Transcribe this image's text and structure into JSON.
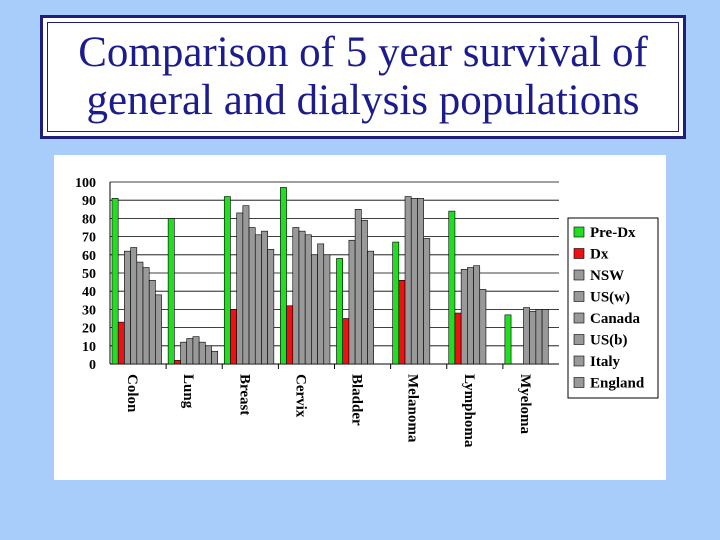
{
  "chart_data": {
    "type": "bar",
    "title": "Comparison of 5 year survival of general and dialysis populations",
    "xlabel": "",
    "ylabel": "",
    "ylim": [
      0,
      100
    ],
    "yticks": [
      "100",
      "90",
      "80",
      "70",
      "60",
      "50",
      "40",
      "30",
      "20",
      "10",
      "0"
    ],
    "grid": true,
    "legend_position": "right",
    "categories": [
      "Colon",
      "Lung",
      "Breast",
      "Cervix",
      "Bladder",
      "Melanoma",
      "Lymphoma",
      "Myeloma"
    ],
    "series": [
      {
        "name": "Pre-Dx",
        "color": "#22dd22",
        "values": [
          91,
          80,
          92,
          97,
          58,
          67,
          84,
          27
        ]
      },
      {
        "name": "Dx",
        "color": "#ee1111",
        "values": [
          23,
          2,
          30,
          32,
          25,
          46,
          28,
          0
        ]
      },
      {
        "name": "NSW",
        "color": "#999999",
        "values": [
          62,
          12,
          83,
          75,
          68,
          92,
          52,
          0
        ]
      },
      {
        "name": "US(w)",
        "color": "#999999",
        "values": [
          64,
          14,
          87,
          73,
          85,
          91,
          53,
          31
        ]
      },
      {
        "name": "Canada",
        "color": "#999999",
        "values": [
          56,
          15,
          75,
          71,
          79,
          91,
          54,
          29
        ]
      },
      {
        "name": "US(b)",
        "color": "#999999",
        "values": [
          53,
          12,
          71,
          60,
          62,
          69,
          41,
          30
        ]
      },
      {
        "name": "Italy",
        "color": "#999999",
        "values": [
          46,
          10,
          73,
          66,
          null,
          null,
          null,
          30
        ]
      },
      {
        "name": "England",
        "color": "#999999",
        "values": [
          38,
          7,
          63,
          60,
          null,
          null,
          null,
          null
        ]
      }
    ]
  }
}
